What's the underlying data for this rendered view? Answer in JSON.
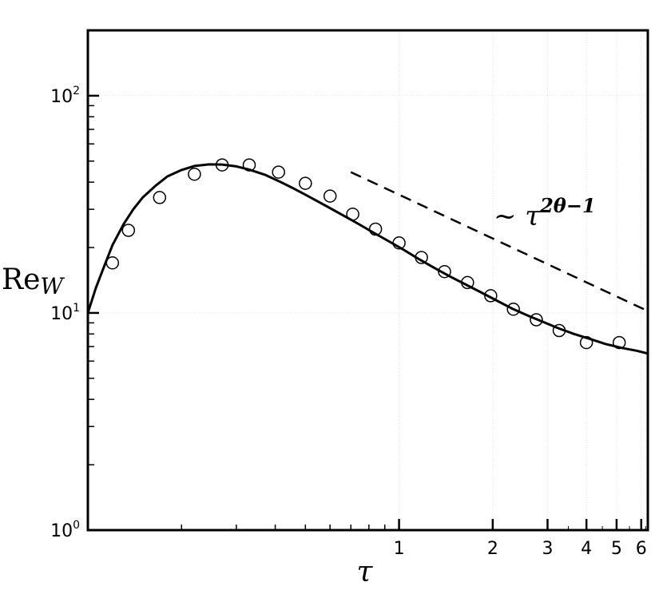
{
  "chart_data": {
    "type": "line",
    "xscale": "log",
    "yscale": "log",
    "xlim": [
      0.1,
      6.3
    ],
    "ylim": [
      1,
      200
    ],
    "xlabel": "τ",
    "ylabel": "Re",
    "ylabel_sub": "W",
    "x_ticks": [
      {
        "value": 1,
        "label": "1"
      },
      {
        "value": 2,
        "label": "2"
      },
      {
        "value": 3,
        "label": "3"
      },
      {
        "value": 4,
        "label": "4"
      },
      {
        "value": 5,
        "label": "5"
      },
      {
        "value": 6,
        "label": "6"
      }
    ],
    "y_ticks": [
      {
        "value": 1,
        "base": "10",
        "exp": "0"
      },
      {
        "value": 10,
        "base": "10",
        "exp": "1"
      },
      {
        "value": 100,
        "base": "10",
        "exp": "2"
      }
    ],
    "grid": true,
    "series": [
      {
        "style": "solid",
        "x": [
          0.1,
          0.106,
          0.113,
          0.12,
          0.13,
          0.14,
          0.15,
          0.165,
          0.18,
          0.2,
          0.22,
          0.245,
          0.27,
          0.3,
          0.33,
          0.37,
          0.41,
          0.46,
          0.52,
          0.58,
          0.65,
          0.73,
          0.82,
          0.92,
          1.03,
          1.15,
          1.3,
          1.46,
          1.64,
          1.84,
          2.06,
          2.3,
          2.6,
          2.9,
          3.25,
          3.65,
          4.1,
          4.6,
          5.2,
          5.8,
          6.3
        ],
        "y": [
          10,
          13,
          16.5,
          20.5,
          25.5,
          30,
          34,
          38.5,
          42.5,
          45.5,
          47.5,
          48.3,
          48.2,
          47.3,
          45.7,
          43.3,
          40.5,
          37.3,
          34,
          31.2,
          28.5,
          26,
          23.6,
          21.5,
          19.6,
          17.8,
          16.1,
          14.7,
          13.5,
          12.4,
          11.4,
          10.5,
          9.7,
          9.1,
          8.5,
          8,
          7.6,
          7.2,
          6.9,
          6.7,
          6.5
        ]
      },
      {
        "style": "circles",
        "x": [
          0.12,
          0.135,
          0.17,
          0.22,
          0.27,
          0.33,
          0.41,
          0.5,
          0.6,
          0.71,
          0.84,
          1.0,
          1.18,
          1.4,
          1.66,
          1.97,
          2.33,
          2.76,
          3.27,
          4.0,
          5.1
        ],
        "y": [
          17,
          24,
          34,
          43.5,
          48,
          48,
          44.5,
          39.5,
          34.5,
          28.5,
          24.3,
          21,
          18,
          15.5,
          13.8,
          12,
          10.4,
          9.3,
          8.3,
          7.3,
          7.3
        ]
      },
      {
        "style": "dashed",
        "x": [
          0.7,
          6.3
        ],
        "y": [
          44.5,
          10.2
        ]
      }
    ],
    "annotations": [
      {
        "x": 2.9,
        "y": 30,
        "text": "~ τ",
        "sup": "2θ−1"
      }
    ]
  }
}
